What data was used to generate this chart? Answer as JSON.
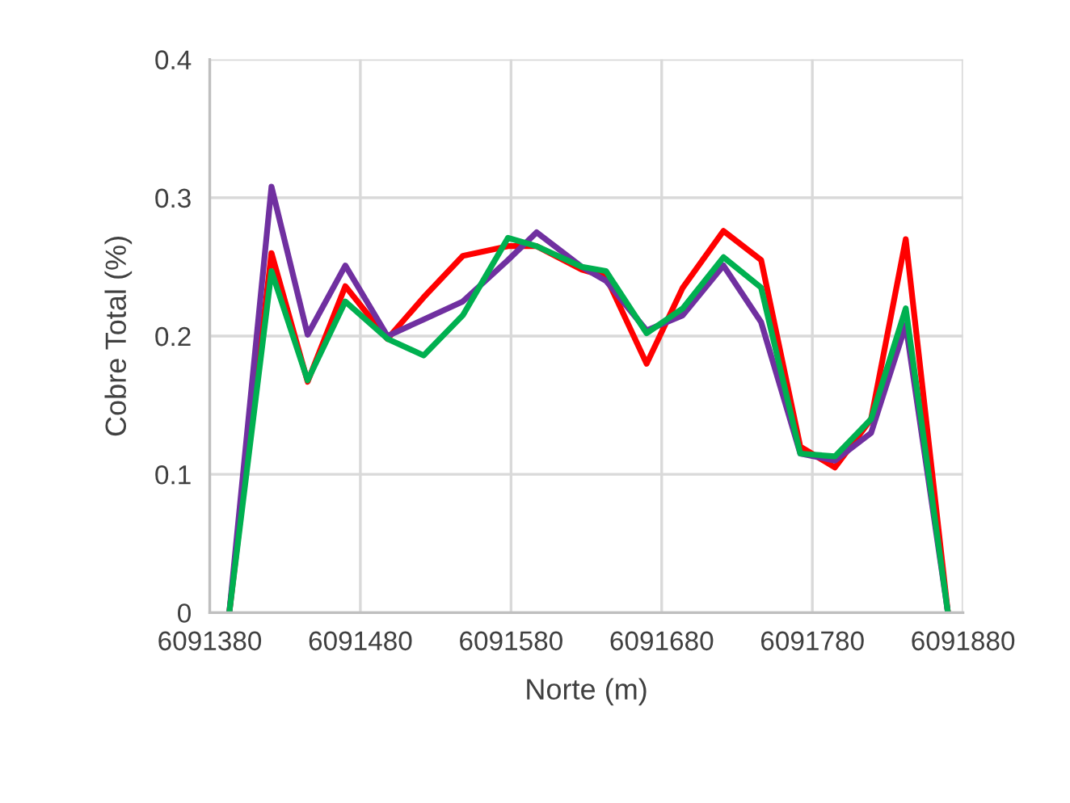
{
  "chart_data": {
    "type": "line",
    "xlabel": "Norte (m)",
    "ylabel": "Cobre Total (%)",
    "x": [
      6091393,
      6091421,
      6091445,
      6091470,
      6091498,
      6091522,
      6091548,
      6091578,
      6091597,
      6091627,
      6091643,
      6091670,
      6091694,
      6091721,
      6091746,
      6091772,
      6091795,
      6091819,
      6091842,
      6091870
    ],
    "series": [
      {
        "color": "#ff0000",
        "values": [
          0,
          0.26,
          0.167,
          0.236,
          0.198,
          0.228,
          0.258,
          0.265,
          0.265,
          0.248,
          0.243,
          0.18,
          0.235,
          0.276,
          0.255,
          0.12,
          0.105,
          0.14,
          0.27,
          0
        ]
      },
      {
        "color": "#7030a0",
        "values": [
          0,
          0.308,
          0.201,
          0.251,
          0.2,
          0.212,
          0.225,
          0.255,
          0.275,
          0.25,
          0.24,
          0.204,
          0.215,
          0.251,
          0.21,
          0.115,
          0.11,
          0.13,
          0.208,
          0
        ]
      },
      {
        "color": "#00b050",
        "values": [
          0,
          0.247,
          0.168,
          0.225,
          0.198,
          0.186,
          0.215,
          0.271,
          0.265,
          0.25,
          0.247,
          0.202,
          0.22,
          0.257,
          0.235,
          0.115,
          0.113,
          0.14,
          0.22,
          0
        ]
      }
    ],
    "xlim": [
      6091380,
      6091880
    ],
    "xticks": [
      6091380,
      6091480,
      6091580,
      6091680,
      6091780,
      6091880
    ],
    "ylim": [
      0,
      0.4
    ],
    "yticks": [
      0,
      0.1,
      0.2,
      0.3,
      0.4
    ],
    "grid": true,
    "legend": false,
    "marker": "none",
    "line_style": "solid"
  }
}
